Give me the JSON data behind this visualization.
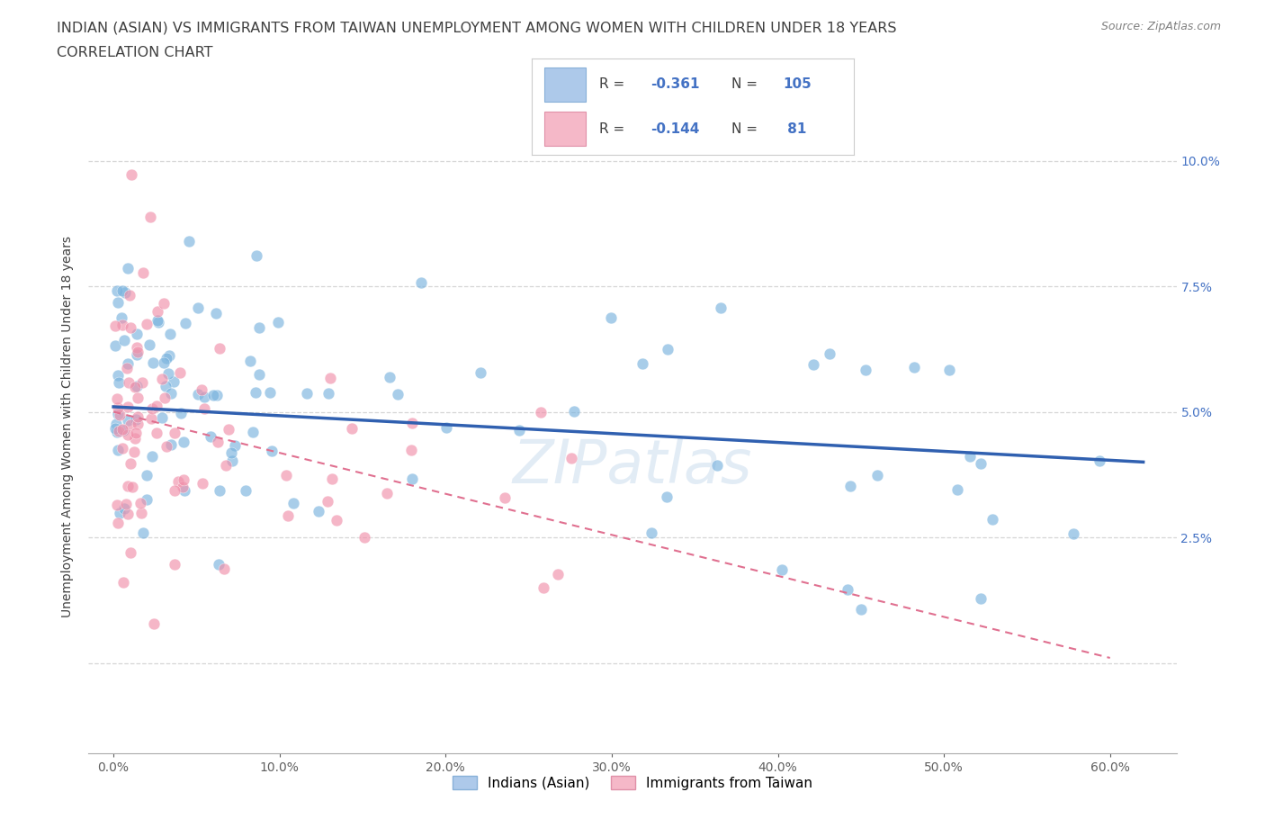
{
  "title_line1": "INDIAN (ASIAN) VS IMMIGRANTS FROM TAIWAN UNEMPLOYMENT AMONG WOMEN WITH CHILDREN UNDER 18 YEARS",
  "title_line2": "CORRELATION CHART",
  "source": "Source: ZipAtlas.com",
  "xlabel_ticks": [
    "0.0%",
    "10.0%",
    "20.0%",
    "30.0%",
    "40.0%",
    "50.0%",
    "60.0%"
  ],
  "ylabel_ticks": [
    "",
    "2.5%",
    "5.0%",
    "7.5%",
    "10.0%"
  ],
  "xlim": [
    -0.015,
    0.64
  ],
  "ylim": [
    -0.018,
    0.112
  ],
  "legend1_color": "#adc9ea",
  "legend2_color": "#f5b8c8",
  "series1_color": "#7ab3de",
  "series2_color": "#f090aa",
  "trend1_color": "#3060b0",
  "trend2_color": "#e07090",
  "watermark": "ZIPatlas",
  "bottom_legend": [
    "Indians (Asian)",
    "Immigrants from Taiwan"
  ],
  "title_color": "#404040",
  "title_fontsize": 11.5,
  "source_color": "#808080",
  "R1": "-0.361",
  "N1": "105",
  "R2": "-0.144",
  "N2": " 81",
  "stat_color": "#4472c4",
  "label_color": "#404040"
}
